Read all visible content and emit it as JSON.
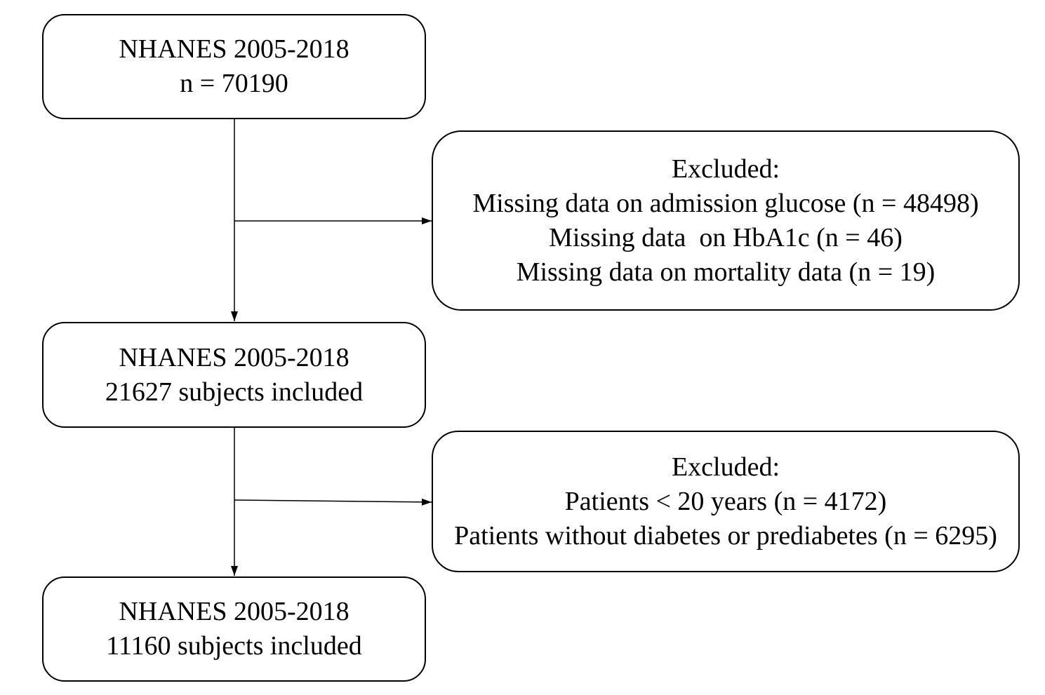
{
  "colors": {
    "stroke": "#000000",
    "text": "#000000",
    "background": "#ffffff"
  },
  "boxes": {
    "start": {
      "title": "NHANES 2005-2018",
      "count": "n = 70190"
    },
    "exclusion_1": {
      "heading": "Excluded:",
      "items": [
        "Missing data on admission glucose (n = 48498)",
        "Missing data  on HbA1c (n = 46)",
        "Missing data on mortality data (n = 19)"
      ]
    },
    "middle": {
      "title": "NHANES 2005-2018",
      "count": "21627 subjects included"
    },
    "exclusion_2": {
      "heading": "Excluded:",
      "items": [
        "Patients < 20 years (n = 4172)",
        "Patients without diabetes or prediabetes (n = 6295)"
      ]
    },
    "final": {
      "title": "NHANES 2005-2018",
      "count": "11160 subjects included"
    }
  }
}
